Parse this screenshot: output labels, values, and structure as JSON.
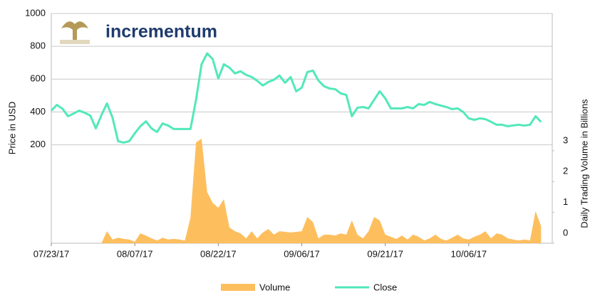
{
  "chart_data": {
    "type": "line",
    "logo": "incrementum",
    "ylabel": "Price in USD",
    "y2label": "Daily Trading Volume in Billions",
    "x": [
      "2017-07-23",
      "2017-07-24",
      "2017-07-25",
      "2017-07-26",
      "2017-07-27",
      "2017-07-28",
      "2017-07-29",
      "2017-07-30",
      "2017-07-31",
      "2017-08-01",
      "2017-08-02",
      "2017-08-03",
      "2017-08-04",
      "2017-08-05",
      "2017-08-06",
      "2017-08-07",
      "2017-08-08",
      "2017-08-09",
      "2017-08-10",
      "2017-08-11",
      "2017-08-12",
      "2017-08-13",
      "2017-08-14",
      "2017-08-15",
      "2017-08-16",
      "2017-08-17",
      "2017-08-18",
      "2017-08-19",
      "2017-08-20",
      "2017-08-21",
      "2017-08-22",
      "2017-08-23",
      "2017-08-24",
      "2017-08-25",
      "2017-08-26",
      "2017-08-27",
      "2017-08-28",
      "2017-08-29",
      "2017-08-30",
      "2017-08-31",
      "2017-09-01",
      "2017-09-02",
      "2017-09-03",
      "2017-09-04",
      "2017-09-05",
      "2017-09-06",
      "2017-09-07",
      "2017-09-08",
      "2017-09-09",
      "2017-09-10",
      "2017-09-11",
      "2017-09-12",
      "2017-09-13",
      "2017-09-14",
      "2017-09-15",
      "2017-09-16",
      "2017-09-17",
      "2017-09-18",
      "2017-09-19",
      "2017-09-20",
      "2017-09-21",
      "2017-09-22",
      "2017-09-23",
      "2017-09-24",
      "2017-09-25",
      "2017-09-26",
      "2017-09-27",
      "2017-09-28",
      "2017-09-29",
      "2017-09-30",
      "2017-10-01",
      "2017-10-02",
      "2017-10-03",
      "2017-10-04",
      "2017-10-05",
      "2017-10-06",
      "2017-10-07",
      "2017-10-08",
      "2017-10-09",
      "2017-10-10",
      "2017-10-11",
      "2017-10-12",
      "2017-10-13",
      "2017-10-14",
      "2017-10-15",
      "2017-10-16",
      "2017-10-17",
      "2017-10-18",
      "2017-10-19"
    ],
    "series": [
      {
        "name": "Volume",
        "type": "area",
        "axis": "y2",
        "color": "#fdbf5e",
        "values": [
          null,
          null,
          null,
          null,
          null,
          null,
          null,
          null,
          null,
          0,
          0.39,
          0.12,
          0.18,
          0.14,
          0.12,
          0.05,
          0.32,
          0.25,
          0.16,
          0.09,
          0.18,
          0.12,
          0.14,
          0.12,
          0.09,
          0.83,
          3.27,
          3.39,
          1.66,
          1.31,
          1.15,
          1.43,
          0.51,
          0.39,
          0.32,
          0.16,
          0.39,
          0.16,
          0.35,
          0.46,
          0.28,
          0.39,
          0.37,
          0.35,
          0.37,
          0.39,
          0.85,
          0.69,
          0.16,
          0.28,
          0.28,
          0.25,
          0.32,
          0.28,
          0.74,
          0.28,
          0.16,
          0.39,
          0.85,
          0.74,
          0.28,
          0.21,
          0.14,
          0.25,
          0.12,
          0.28,
          0.21,
          0.09,
          0.16,
          0.28,
          0.14,
          0.09,
          0.18,
          0.28,
          0.16,
          0.12,
          0.21,
          0.28,
          0.39,
          0.16,
          0.32,
          0.28,
          0.16,
          0.12,
          0.09,
          0.12,
          0.09,
          1.04,
          0.55
        ]
      },
      {
        "name": "Close",
        "color": "#52e8ba",
        "values": [
          408,
          443,
          420,
          374,
          390,
          408,
          395,
          378,
          300,
          380,
          452,
          365,
          222,
          213,
          222,
          270,
          313,
          343,
          300,
          278,
          330,
          317,
          296,
          296,
          296,
          296,
          474,
          691,
          757,
          722,
          604,
          691,
          670,
          635,
          648,
          626,
          613,
          590,
          561,
          583,
          596,
          622,
          578,
          613,
          526,
          548,
          643,
          652,
          591,
          557,
          543,
          539,
          513,
          504,
          374,
          426,
          430,
          422,
          474,
          526,
          483,
          422,
          422,
          422,
          430,
          422,
          448,
          443,
          461,
          448,
          439,
          430,
          417,
          422,
          400,
          361,
          352,
          361,
          356,
          340,
          322,
          322,
          313,
          318,
          322,
          317,
          322,
          374,
          339
        ]
      }
    ],
    "xlim": [
      "2017-07-23",
      "2017-10-21"
    ],
    "xticks": [
      {
        "value": "2017-07-23",
        "label": "07/23/17"
      },
      {
        "value": "2017-08-07",
        "label": "08/07/17"
      },
      {
        "value": "2017-08-22",
        "label": "08/22/17"
      },
      {
        "value": "2017-09-06",
        "label": "09/06/17"
      },
      {
        "value": "2017-09-21",
        "label": "09/21/17"
      },
      {
        "value": "2017-10-06",
        "label": "10/06/17"
      }
    ],
    "ylim": [
      -400,
      1000
    ],
    "yticks": [
      200,
      400,
      600,
      800,
      1000
    ],
    "y2lim": [
      0,
      7.45
    ],
    "y2ticks": [
      0,
      1,
      2,
      3
    ],
    "grid": true,
    "legend": "bottom"
  }
}
